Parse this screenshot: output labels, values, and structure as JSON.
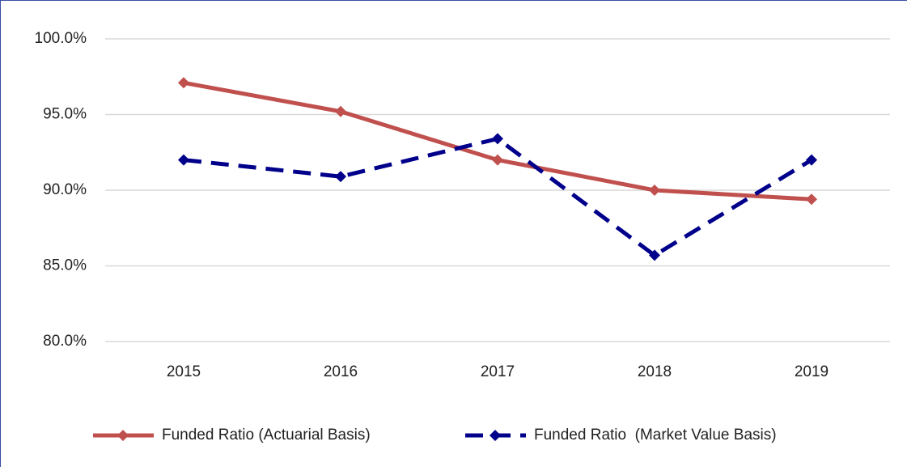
{
  "chart_data": {
    "type": "line",
    "categories": [
      "2015",
      "2016",
      "2017",
      "2018",
      "2019"
    ],
    "series": [
      {
        "name": "Funded Ratio (Actuarial Basis)",
        "color": "#c0504d",
        "line_style": "solid",
        "values": [
          97.1,
          95.2,
          92.0,
          90.0,
          89.4
        ]
      },
      {
        "name": "Funded Ratio  (Market Value Basis)",
        "color": "#00008b",
        "line_style": "dashed",
        "values": [
          92.0,
          90.9,
          93.4,
          85.7,
          92.0
        ]
      }
    ],
    "ylim": [
      80,
      100
    ],
    "yticks": [
      {
        "value": 80,
        "label": "80.0%"
      },
      {
        "value": 85,
        "label": "85.0%"
      },
      {
        "value": 90,
        "label": "90.0%"
      },
      {
        "value": 95,
        "label": "95.0%"
      },
      {
        "value": 100,
        "label": "100.0%"
      }
    ],
    "grid": true,
    "legend": "bottom"
  }
}
